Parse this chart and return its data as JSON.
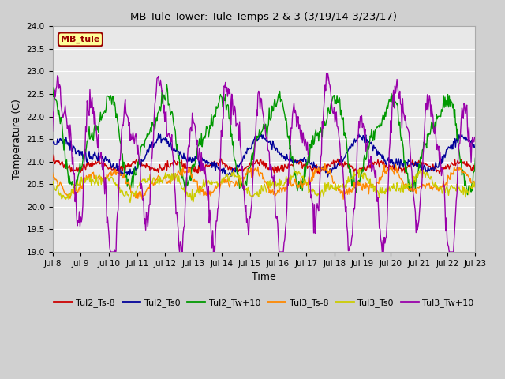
{
  "title": "MB Tule Tower: Tule Temps 2 & 3 (3/19/14-3/23/17)",
  "xlabel": "Time",
  "ylabel": "Temperature (C)",
  "xlim": [
    0,
    15
  ],
  "ylim": [
    19.0,
    24.0
  ],
  "yticks": [
    19.0,
    19.5,
    20.0,
    20.5,
    21.0,
    21.5,
    22.0,
    22.5,
    23.0,
    23.5,
    24.0
  ],
  "xtick_labels": [
    "Jul 8",
    "Jul 9",
    "Jul 10",
    "Jul 11",
    "Jul 12",
    "Jul 13",
    "Jul 14",
    "Jul 15",
    "Jul 16",
    "Jul 17",
    "Jul 18",
    "Jul 19",
    "Jul 20",
    "Jul 21",
    "Jul 22",
    "Jul 23"
  ],
  "fig_bg": "#d0d0d0",
  "plot_bg": "#e8e8e8",
  "grid_color": "#ffffff",
  "legend_label": "MB_tule",
  "legend_bg": "#ffff99",
  "legend_border": "#990000",
  "series_colors": {
    "Tul2_Ts-8": "#cc0000",
    "Tul2_Ts0": "#000099",
    "Tul2_Tw+10": "#009900",
    "Tul3_Ts-8": "#ff8800",
    "Tul3_Ts0": "#cccc00",
    "Tul3_Tw+10": "#9900aa"
  }
}
